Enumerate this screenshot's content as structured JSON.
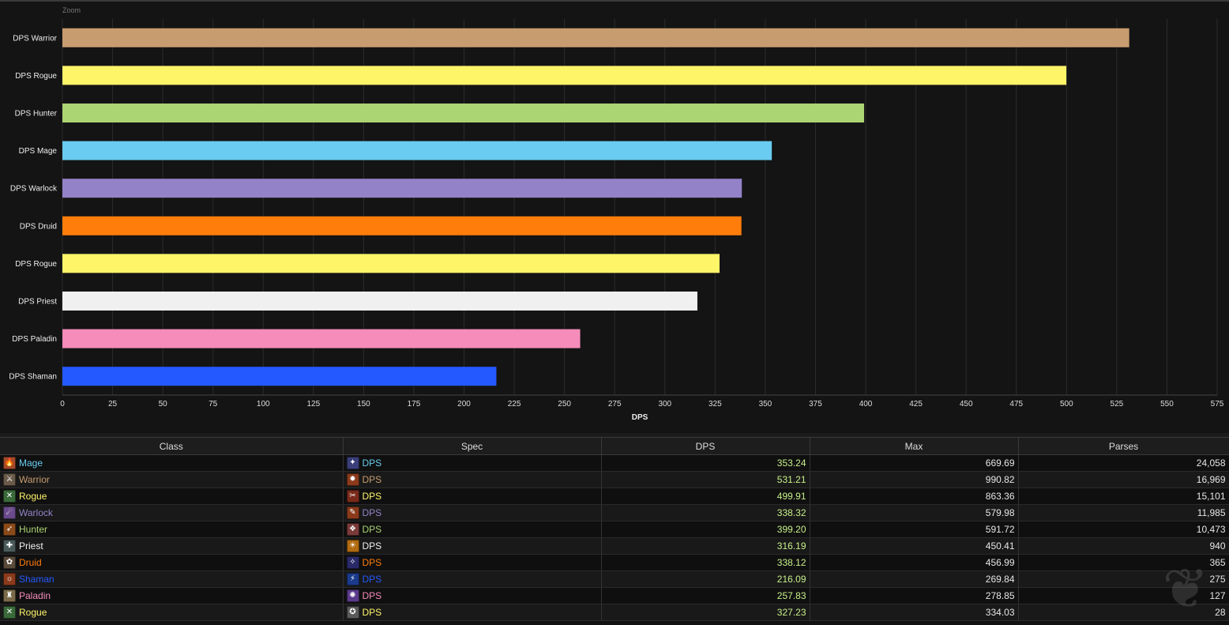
{
  "chart": {
    "zoom_label": "Zoom"
  },
  "chart_data": {
    "type": "bar",
    "orientation": "horizontal",
    "title": "",
    "xlabel": "DPS",
    "ylabel": "",
    "xlim": [
      0,
      575
    ],
    "ticks": [
      0,
      25,
      50,
      75,
      100,
      125,
      150,
      175,
      200,
      225,
      250,
      275,
      300,
      325,
      350,
      375,
      400,
      425,
      450,
      475,
      500,
      525,
      550,
      575
    ],
    "grid": true,
    "categories": [
      "DPS Warrior",
      "DPS Rogue",
      "DPS Hunter",
      "DPS Mage",
      "DPS Warlock",
      "DPS Druid",
      "DPS Rogue",
      "DPS Priest",
      "DPS Paladin",
      "DPS Shaman"
    ],
    "values": [
      531.21,
      499.91,
      399.2,
      353.24,
      338.32,
      338.12,
      327.23,
      316.19,
      257.83,
      216.09
    ],
    "colors": [
      "#c79c6e",
      "#fff569",
      "#abd473",
      "#69ccf0",
      "#9482c9",
      "#ff7d0a",
      "#fff569",
      "#f0f0f0",
      "#f58cba",
      "#2459ff"
    ]
  },
  "table": {
    "headers": [
      "Class",
      "Spec",
      "DPS",
      "Max",
      "Parses"
    ],
    "rows": [
      {
        "class": "Mage",
        "spec": "DPS",
        "dps": "353.24",
        "max": "669.69",
        "parses": "24,058",
        "color": "#69ccf0",
        "class_icon": "mage-icon",
        "spec_icon": "mage-spec-icon",
        "ci": "🔥",
        "si": "✦",
        "cbg": "#a34a2a",
        "sbg": "#3a3f7a"
      },
      {
        "class": "Warrior",
        "spec": "DPS",
        "dps": "531.21",
        "max": "990.82",
        "parses": "16,969",
        "color": "#c79c6e",
        "class_icon": "warrior-icon",
        "spec_icon": "warrior-spec-icon",
        "ci": "⚔",
        "si": "✹",
        "cbg": "#6a5a4a",
        "sbg": "#8a3a1a"
      },
      {
        "class": "Rogue",
        "spec": "DPS",
        "dps": "499.91",
        "max": "863.36",
        "parses": "15,101",
        "color": "#fff569",
        "class_icon": "rogue-icon",
        "spec_icon": "rogue-spec-icon",
        "ci": "✕",
        "si": "✂",
        "cbg": "#3a6a3a",
        "sbg": "#7a2a1a"
      },
      {
        "class": "Warlock",
        "spec": "DPS",
        "dps": "338.32",
        "max": "579.98",
        "parses": "11,985",
        "color": "#9482c9",
        "class_icon": "warlock-icon",
        "spec_icon": "warlock-spec-icon",
        "ci": "☄",
        "si": "✎",
        "cbg": "#6a4a8a",
        "sbg": "#8a3a1a"
      },
      {
        "class": "Hunter",
        "spec": "DPS",
        "dps": "399.20",
        "max": "591.72",
        "parses": "10,473",
        "color": "#abd473",
        "class_icon": "hunter-icon",
        "spec_icon": "hunter-spec-icon",
        "ci": "➶",
        "si": "❖",
        "cbg": "#8a4a1a",
        "sbg": "#7a3a3a"
      },
      {
        "class": "Priest",
        "spec": "DPS",
        "dps": "316.19",
        "max": "450.41",
        "parses": "940",
        "color": "#f0f0f0",
        "class_icon": "priest-icon",
        "spec_icon": "priest-spec-icon",
        "ci": "✚",
        "si": "☀",
        "cbg": "#4a5a5a",
        "sbg": "#b06a10"
      },
      {
        "class": "Druid",
        "spec": "DPS",
        "dps": "338.12",
        "max": "456.99",
        "parses": "365",
        "color": "#ff7d0a",
        "class_icon": "druid-icon",
        "spec_icon": "druid-spec-icon",
        "ci": "✿",
        "si": "✧",
        "cbg": "#5a4a3a",
        "sbg": "#2a2a6a"
      },
      {
        "class": "Shaman",
        "spec": "DPS",
        "dps": "216.09",
        "max": "269.84",
        "parses": "275",
        "color": "#2459ff",
        "class_icon": "shaman-icon",
        "spec_icon": "shaman-spec-icon",
        "ci": "☼",
        "si": "⚡",
        "cbg": "#8a3a1a",
        "sbg": "#1a3a8a"
      },
      {
        "class": "Paladin",
        "spec": "DPS",
        "dps": "257.83",
        "max": "278.85",
        "parses": "127",
        "color": "#f58cba",
        "class_icon": "paladin-icon",
        "spec_icon": "paladin-spec-icon",
        "ci": "♜",
        "si": "✺",
        "cbg": "#7a6a4a",
        "sbg": "#5a3a8a"
      },
      {
        "class": "Rogue",
        "spec": "DPS",
        "dps": "327.23",
        "max": "334.03",
        "parses": "28",
        "color": "#fff569",
        "class_icon": "rogue-icon",
        "spec_icon": "rogue-spec-icon",
        "ci": "✕",
        "si": "✪",
        "cbg": "#3a6a3a",
        "sbg": "#5a5a5a"
      }
    ]
  }
}
